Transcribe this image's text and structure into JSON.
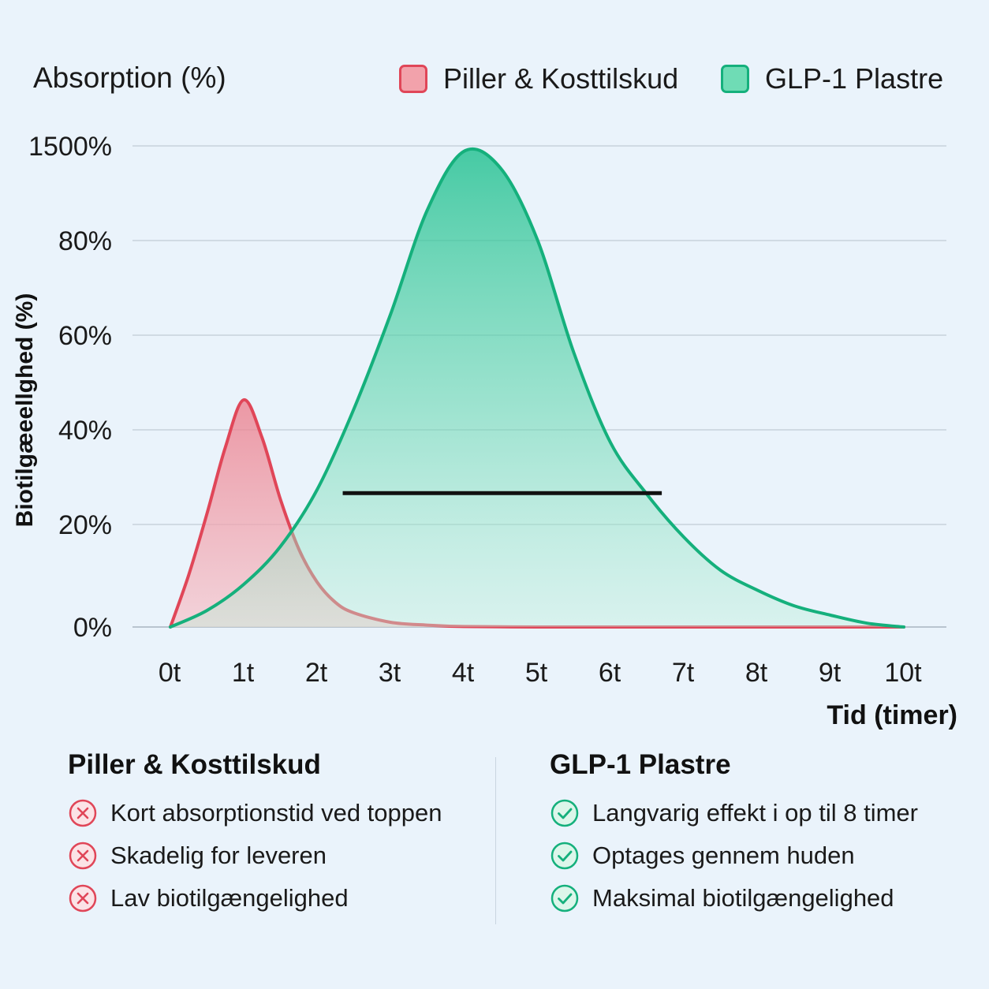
{
  "header": {
    "absorption_title": "Absorption (%)"
  },
  "legend": {
    "pills_label": "Piller & Kosttilskud",
    "glp_label": "GLP-1 Plastre"
  },
  "colors": {
    "pills": "#e04658",
    "glp": "#15b07c",
    "background": "#eaf3fb"
  },
  "chart_data": {
    "type": "area",
    "ylabel": "Biotilgæeellghed (%)",
    "xlabel": "Tid (timer)",
    "y_tick_labels": [
      "0%",
      "20%",
      "40%",
      "60%",
      "80%",
      "1500%"
    ],
    "x_tick_labels": [
      "0t",
      "1t",
      "2t",
      "3t",
      "4t",
      "5t",
      "6t",
      "7t",
      "8t",
      "9t",
      "10t"
    ],
    "grid": true,
    "legend_position": "top-right",
    "series": [
      {
        "name": "Piller & Kosttilskud",
        "x": [
          0,
          0.25,
          0.5,
          0.75,
          1.0,
          1.25,
          1.5,
          1.75,
          2.0,
          2.25,
          2.5,
          3.0,
          3.5,
          4.0,
          5.0,
          6.0,
          7.0,
          8.0,
          9.0,
          10.0
        ],
        "y": [
          0,
          11,
          24,
          38,
          48,
          40,
          27,
          16.5,
          9.5,
          5.2,
          3.0,
          1.0,
          0.4,
          0.1,
          0,
          0,
          0,
          0,
          0,
          0
        ]
      },
      {
        "name": "GLP-1 Plastre",
        "x": [
          0,
          0.5,
          1.0,
          1.5,
          2.0,
          2.5,
          3.0,
          3.5,
          4.0,
          4.5,
          5.0,
          5.5,
          6.0,
          6.5,
          7.0,
          7.5,
          8.0,
          8.5,
          9.0,
          9.5,
          10.0
        ],
        "y": [
          0,
          3.5,
          9.0,
          17.0,
          29.0,
          46.0,
          66.0,
          88.0,
          100.5,
          97.0,
          82.0,
          58.0,
          39.0,
          28.0,
          19.0,
          12.0,
          7.8,
          4.5,
          2.5,
          0.8,
          0
        ]
      }
    ],
    "annotation_line": {
      "x_start": 2.35,
      "x_end": 6.7,
      "y": 28.3
    }
  },
  "pills_panel": {
    "title": "Piller & Kosttilskud",
    "items": [
      {
        "icon": "x-circle-icon",
        "text": "Kort absorptionstid ved toppen"
      },
      {
        "icon": "x-circle-icon",
        "text": "Skadelig for leveren"
      },
      {
        "icon": "x-circle-icon",
        "text": "Lav biotilgængelighed"
      }
    ]
  },
  "glp_panel": {
    "title": "GLP-1 Plastre",
    "items": [
      {
        "icon": "check-circle-icon",
        "text": "Langvarig effekt i op til 8 timer"
      },
      {
        "icon": "check-circle-icon",
        "text": "Optages gennem huden"
      },
      {
        "icon": "check-circle-icon",
        "text": "Maksimal biotilgængelighed"
      }
    ]
  }
}
